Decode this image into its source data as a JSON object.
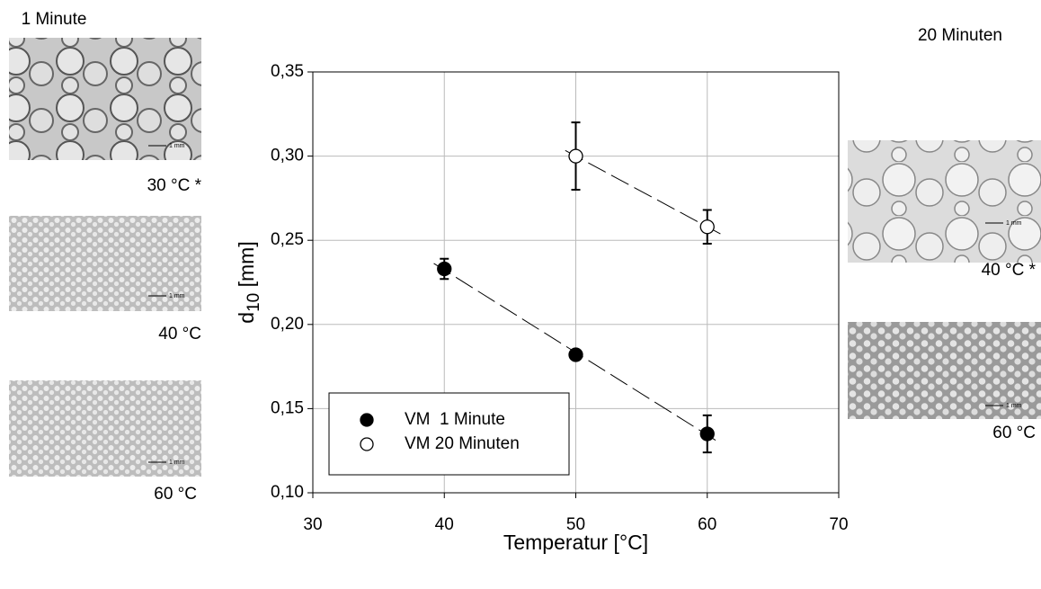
{
  "chart_data": {
    "type": "scatter",
    "xlabel": "Temperatur [°C]",
    "ylabel_parts": [
      "d",
      "10",
      " [mm]"
    ],
    "xlim": [
      30,
      70
    ],
    "xticks": [
      30,
      40,
      50,
      60,
      70
    ],
    "ylim": [
      0.1,
      0.35
    ],
    "yticks": [
      {
        "value": 0.1,
        "label": "0,10"
      },
      {
        "value": 0.15,
        "label": "0,15"
      },
      {
        "value": 0.2,
        "label": "0,20"
      },
      {
        "value": 0.25,
        "label": "0,25"
      },
      {
        "value": 0.3,
        "label": "0,30"
      },
      {
        "value": 0.35,
        "label": "0,35"
      }
    ],
    "grid": true,
    "legend": "lower left",
    "series": [
      {
        "name": "VM  1 Minute",
        "marker": "filled",
        "color": "#000000",
        "x": [
          40,
          50,
          60
        ],
        "values": [
          0.233,
          0.182,
          0.135
        ],
        "errors": [
          0.006,
          0,
          0.011
        ]
      },
      {
        "name": "VM 20 Minuten",
        "marker": "open",
        "color": "#000000",
        "x": [
          50,
          60
        ],
        "values": [
          0.3,
          0.258
        ],
        "errors": [
          0.02,
          0.01
        ]
      }
    ]
  },
  "images": {
    "left_title": "1 Minute",
    "right_title": "20 Minuten",
    "scale_label": "1 mm",
    "left": [
      {
        "label": "30 °C *"
      },
      {
        "label": "40 °C"
      },
      {
        "label": "60 °C"
      }
    ],
    "right": [
      {
        "label": "40 °C *"
      },
      {
        "label": "60 °C"
      }
    ]
  }
}
